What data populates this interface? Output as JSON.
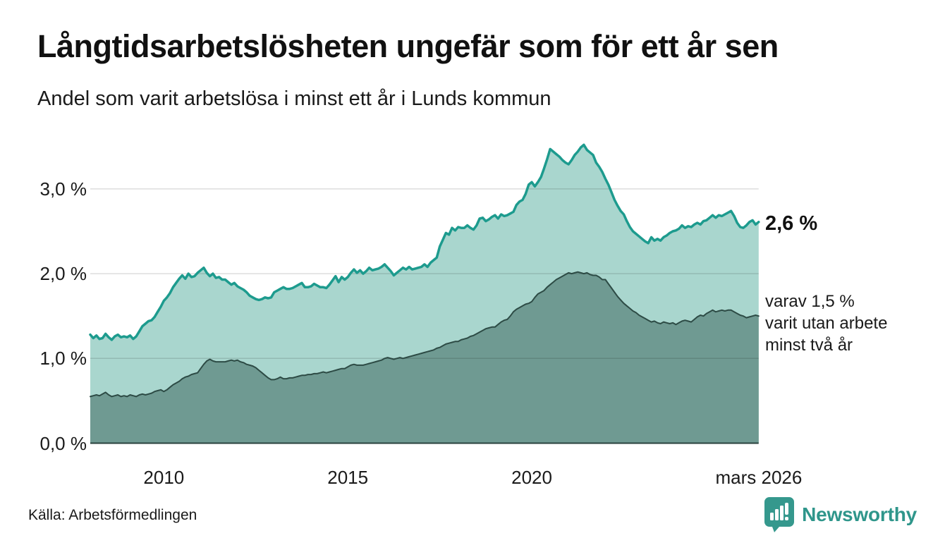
{
  "header": {
    "title": "Långtidsarbetslösheten ungefär som för ett år sen",
    "subtitle": "Andel som varit arbetslösa i minst ett år i Lunds kommun"
  },
  "annotations": {
    "primary_value": "2,6 %",
    "secondary": {
      "lines": [
        "varav 1,5 %",
        "varit utan arbete",
        "minst två år"
      ]
    }
  },
  "footer": {
    "source": "Källa: Arbetsförmedlingen",
    "logo_text": "Newsworthy"
  },
  "colors": {
    "line_one_year": "#1d9b8e",
    "fill_one_year": "#a9d6ce",
    "line_two_years": "#2d4b45",
    "fill_two_years": "#6f9a92",
    "gridline": "rgba(0,0,0,0.13)",
    "baseline": "#29413d",
    "logo_teal": "#2f968b",
    "text": "#111111"
  },
  "chart_data": {
    "type": "area",
    "title": "Långtidsarbetslösheten ungefär som för ett år sen",
    "subtitle": "Andel som varit arbetslösa i minst ett år i Lunds kommun",
    "xlabel": "",
    "ylabel": "",
    "unit": "%",
    "x_start": 2008.0,
    "x_step": 0.0833333,
    "ylim": [
      0,
      3.6
    ],
    "grid": true,
    "legend_position": "right-annotations",
    "yticks": [
      {
        "value": 3.0,
        "label": "3,0 %"
      },
      {
        "value": 2.0,
        "label": "2,0 %"
      },
      {
        "value": 1.0,
        "label": "1,0 %"
      },
      {
        "value": 0.0,
        "label": "0,0 %"
      }
    ],
    "xticks": [
      {
        "year": 2010,
        "label": "2010"
      },
      {
        "year": 2015,
        "label": "2015"
      },
      {
        "year": 2020,
        "label": "2020"
      },
      {
        "year": 2026.17,
        "label": "mars 2026"
      }
    ],
    "series": [
      {
        "name": "Arbetslösa minst ett år",
        "end_label": "2,6 %",
        "last_value": 2.6,
        "values": [
          1.28,
          1.24,
          1.27,
          1.23,
          1.24,
          1.29,
          1.25,
          1.22,
          1.26,
          1.28,
          1.25,
          1.26,
          1.25,
          1.27,
          1.23,
          1.26,
          1.32,
          1.38,
          1.41,
          1.44,
          1.45,
          1.49,
          1.55,
          1.61,
          1.68,
          1.72,
          1.77,
          1.84,
          1.89,
          1.94,
          1.98,
          1.94,
          2.0,
          1.96,
          1.97,
          2.01,
          2.04,
          2.07,
          2.01,
          1.97,
          2.0,
          1.95,
          1.96,
          1.93,
          1.93,
          1.9,
          1.87,
          1.89,
          1.85,
          1.83,
          1.81,
          1.78,
          1.74,
          1.72,
          1.7,
          1.69,
          1.7,
          1.72,
          1.71,
          1.72,
          1.78,
          1.8,
          1.82,
          1.84,
          1.82,
          1.82,
          1.83,
          1.85,
          1.87,
          1.89,
          1.84,
          1.84,
          1.85,
          1.88,
          1.86,
          1.84,
          1.84,
          1.83,
          1.87,
          1.92,
          1.97,
          1.9,
          1.96,
          1.93,
          1.96,
          2.01,
          2.05,
          2.01,
          2.04,
          2.0,
          2.03,
          2.07,
          2.04,
          2.05,
          2.06,
          2.08,
          2.11,
          2.07,
          2.03,
          1.98,
          2.01,
          2.04,
          2.07,
          2.05,
          2.08,
          2.05,
          2.06,
          2.07,
          2.08,
          2.11,
          2.08,
          2.13,
          2.16,
          2.19,
          2.32,
          2.4,
          2.48,
          2.46,
          2.54,
          2.51,
          2.55,
          2.54,
          2.54,
          2.57,
          2.54,
          2.52,
          2.57,
          2.65,
          2.66,
          2.62,
          2.64,
          2.67,
          2.69,
          2.65,
          2.7,
          2.68,
          2.69,
          2.71,
          2.73,
          2.81,
          2.85,
          2.87,
          2.94,
          3.05,
          3.08,
          3.03,
          3.08,
          3.14,
          3.24,
          3.35,
          3.47,
          3.44,
          3.41,
          3.38,
          3.34,
          3.31,
          3.29,
          3.34,
          3.4,
          3.44,
          3.49,
          3.52,
          3.46,
          3.43,
          3.4,
          3.31,
          3.26,
          3.2,
          3.12,
          3.05,
          2.96,
          2.87,
          2.8,
          2.74,
          2.7,
          2.62,
          2.55,
          2.5,
          2.47,
          2.44,
          2.41,
          2.38,
          2.36,
          2.43,
          2.39,
          2.41,
          2.39,
          2.43,
          2.45,
          2.48,
          2.5,
          2.51,
          2.53,
          2.57,
          2.54,
          2.56,
          2.55,
          2.58,
          2.6,
          2.58,
          2.62,
          2.63,
          2.66,
          2.69,
          2.66,
          2.69,
          2.68,
          2.7,
          2.72,
          2.74,
          2.68,
          2.6,
          2.55,
          2.54,
          2.57,
          2.61,
          2.63,
          2.58,
          2.61
        ]
      },
      {
        "name": "Varav utan arbete minst två år",
        "end_label": "varav 1,5 % varit utan arbete minst två år",
        "last_value": 1.5,
        "values": [
          0.55,
          0.56,
          0.57,
          0.56,
          0.58,
          0.6,
          0.57,
          0.55,
          0.56,
          0.57,
          0.55,
          0.56,
          0.55,
          0.57,
          0.56,
          0.55,
          0.57,
          0.58,
          0.57,
          0.58,
          0.59,
          0.61,
          0.62,
          0.63,
          0.61,
          0.63,
          0.66,
          0.69,
          0.71,
          0.73,
          0.76,
          0.78,
          0.79,
          0.81,
          0.82,
          0.83,
          0.88,
          0.93,
          0.97,
          0.99,
          0.97,
          0.96,
          0.96,
          0.96,
          0.96,
          0.97,
          0.98,
          0.97,
          0.98,
          0.96,
          0.95,
          0.93,
          0.92,
          0.91,
          0.89,
          0.86,
          0.83,
          0.8,
          0.77,
          0.75,
          0.75,
          0.76,
          0.78,
          0.76,
          0.76,
          0.77,
          0.77,
          0.78,
          0.79,
          0.8,
          0.8,
          0.81,
          0.81,
          0.82,
          0.82,
          0.83,
          0.84,
          0.83,
          0.84,
          0.85,
          0.86,
          0.87,
          0.88,
          0.88,
          0.9,
          0.92,
          0.93,
          0.92,
          0.92,
          0.92,
          0.93,
          0.94,
          0.95,
          0.96,
          0.97,
          0.98,
          1.0,
          1.01,
          1.0,
          0.99,
          1.0,
          1.01,
          1.0,
          1.01,
          1.02,
          1.03,
          1.04,
          1.05,
          1.06,
          1.07,
          1.08,
          1.09,
          1.1,
          1.12,
          1.13,
          1.15,
          1.17,
          1.18,
          1.19,
          1.2,
          1.2,
          1.22,
          1.23,
          1.24,
          1.26,
          1.27,
          1.29,
          1.31,
          1.33,
          1.35,
          1.36,
          1.37,
          1.37,
          1.4,
          1.43,
          1.45,
          1.46,
          1.5,
          1.55,
          1.58,
          1.6,
          1.62,
          1.64,
          1.65,
          1.67,
          1.72,
          1.76,
          1.78,
          1.8,
          1.84,
          1.87,
          1.9,
          1.93,
          1.95,
          1.97,
          1.99,
          2.01,
          2.0,
          2.01,
          2.02,
          2.01,
          2.0,
          2.01,
          1.99,
          1.98,
          1.98,
          1.96,
          1.93,
          1.93,
          1.88,
          1.83,
          1.78,
          1.73,
          1.69,
          1.65,
          1.62,
          1.59,
          1.56,
          1.54,
          1.51,
          1.49,
          1.47,
          1.45,
          1.43,
          1.44,
          1.42,
          1.41,
          1.43,
          1.42,
          1.41,
          1.42,
          1.4,
          1.42,
          1.44,
          1.45,
          1.44,
          1.43,
          1.46,
          1.49,
          1.51,
          1.5,
          1.53,
          1.55,
          1.57,
          1.55,
          1.56,
          1.57,
          1.56,
          1.57,
          1.57,
          1.55,
          1.53,
          1.51,
          1.5,
          1.48,
          1.49,
          1.5,
          1.51,
          1.5
        ]
      }
    ]
  }
}
